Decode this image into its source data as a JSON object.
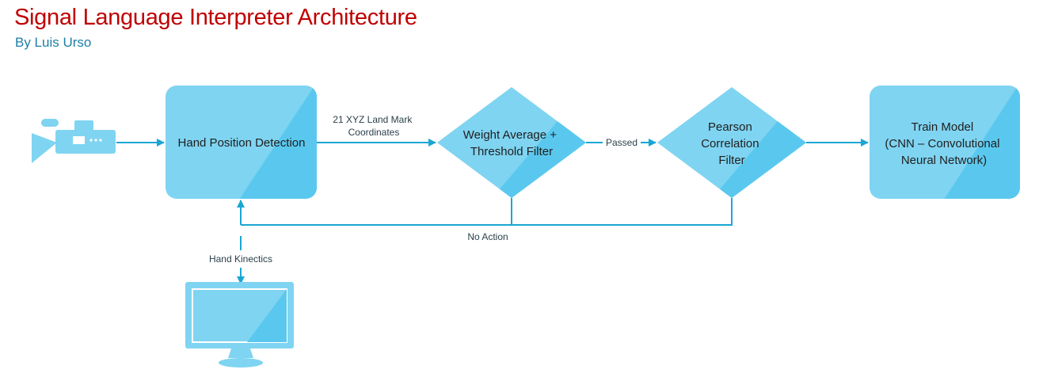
{
  "header": {
    "title": "Signal Language Interpreter Architecture",
    "subtitle": "By Luis Urso"
  },
  "nodes": {
    "hand_detection": {
      "label": "Hand Position Detection"
    },
    "weight_filter": {
      "lines": [
        "Weight Average +",
        "Threshold Filter"
      ]
    },
    "pearson_filter": {
      "lines": [
        "Pearson",
        "Correlation",
        "Filter"
      ]
    },
    "train_model": {
      "lines": [
        "Train Model",
        "(CNN – Convolutional",
        "Neural Network)"
      ]
    }
  },
  "edges": {
    "coordinates": {
      "lines": [
        "21 XYZ Land Mark",
        "Coordinates"
      ]
    },
    "passed": {
      "label": "Passed"
    },
    "no_action": {
      "label": "No Action"
    },
    "hand_kinetics": {
      "label": "Hand Kinectics"
    }
  },
  "icons": {
    "camera": "video-camera-icon",
    "monitor": "monitor-icon"
  },
  "colors": {
    "title": "#c00000",
    "subtitle": "#1e7ea6",
    "node_fill": "#7fd4f1",
    "node_shade": "#5ac8ee",
    "connector": "#1aa6d4"
  }
}
